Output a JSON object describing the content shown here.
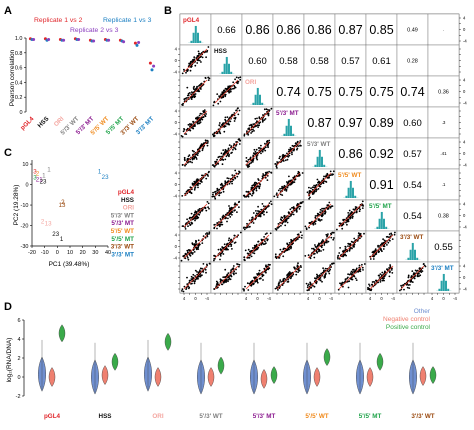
{
  "colors": {
    "pGL4": "#e0262b",
    "HSS": "#111111",
    "ORI": "#f4a6a0",
    "WT53": "#7f7f7f",
    "MT53": "#8b1a8f",
    "WT55": "#f08a1c",
    "MT55": "#1fa34a",
    "WT33": "#9a4a10",
    "MT33": "#1b7fc2",
    "rep12": "#e0262b",
    "rep13": "#1b7fc2",
    "rep23": "#8b3fbf",
    "hist": "#2aa3a8",
    "fit": "#e23a2a",
    "other": "#6f8fd0",
    "neg": "#ef8070",
    "pos": "#3aaa4a"
  },
  "panel_labels": {
    "a": "A",
    "b": "B",
    "c": "C",
    "d": "D"
  },
  "chart_data": [
    {
      "id": "A",
      "type": "scatter",
      "legend": [
        "Replicate 1 vs 2",
        "Replicate 1 vs 3",
        "Replicate 2 vs 3"
      ],
      "ylabel": "Pearson correlation",
      "ylim": [
        0,
        1.0
      ],
      "yticks": [
        "0",
        "0.2",
        "0.4",
        "0.6",
        "0.8",
        "1.0"
      ],
      "categories": [
        "pGL4",
        "HSS",
        "ORI",
        "5'/3' WT",
        "5'/3' MT",
        "5'/5' WT",
        "5'/5' MT",
        "3'/3' WT",
        "3'/3' MT"
      ],
      "series": [
        {
          "name": "Replicate 1 vs 2",
          "values": [
            0.99,
            0.99,
            0.98,
            0.99,
            0.97,
            0.98,
            0.97,
            0.93,
            0.66
          ]
        },
        {
          "name": "Replicate 1 vs 3",
          "values": [
            0.98,
            0.97,
            0.97,
            0.98,
            0.96,
            0.97,
            0.96,
            0.9,
            0.57
          ]
        },
        {
          "name": "Replicate 2 vs 3",
          "values": [
            0.98,
            0.98,
            0.97,
            0.98,
            0.96,
            0.97,
            0.95,
            0.94,
            0.62
          ]
        }
      ]
    },
    {
      "id": "B",
      "type": "table",
      "labels": [
        "pGL4",
        "HSS",
        "ORI",
        "5'/3' MT",
        "5'/3' WT",
        "5'/5' WT",
        "5'/5' MT",
        "3'/3' WT",
        "3'/3' MT"
      ],
      "upper": [
        [
          "0.66",
          "0.86",
          "0.86",
          "0.86",
          "0.87",
          "0.85",
          "0.49",
          "."
        ],
        [
          "0.60",
          "0.58",
          "0.58",
          "0.57",
          "0.61",
          "0.28"
        ],
        [
          "0.74",
          "0.75",
          "0.75",
          "0.75",
          "0.74",
          "0.36"
        ],
        [
          "0.87",
          "0.97",
          "0.89",
          "0.60",
          ".3"
        ],
        [
          "0.86",
          "0.92",
          "0.57",
          ".41"
        ],
        [
          "0.91",
          "0.54",
          ".1"
        ],
        [
          "0.54",
          "0.38"
        ],
        [
          "0.55"
        ]
      ],
      "right_ticks": [
        "4",
        "2",
        "0",
        "-2",
        "-4"
      ]
    },
    {
      "id": "C",
      "type": "scatter",
      "xlabel": "PC1 (39.48%)",
      "ylabel": "PC2 (19.28%)",
      "xlim": [
        -20,
        40
      ],
      "ylim": [
        -30,
        12
      ],
      "xticks": [
        "-20",
        "-10",
        "0",
        "10",
        "20",
        "30",
        "40"
      ],
      "yticks": [
        "10",
        "0",
        "-10",
        "-20",
        "-30"
      ],
      "legend": [
        "pGL4",
        "HSS",
        "ORI",
        "5'/3' WT",
        "5'/3' MT",
        "5'/5' WT",
        "5'/5' MT",
        "3'/3' WT",
        "3'/3' MT"
      ],
      "points": [
        {
          "text": "1",
          "x": 32,
          "y": 5.5,
          "c": "MT33"
        },
        {
          "text": "23",
          "x": 35,
          "y": 2.8,
          "c": "MT33"
        },
        {
          "text": "1",
          "x": -8,
          "y": 6.5,
          "c": "WT53"
        },
        {
          "text": "3",
          "x": -19,
          "y": 5.5,
          "c": "pGL4"
        },
        {
          "text": "2",
          "x": -17,
          "y": 4.5,
          "c": "WT55"
        },
        {
          "text": "1",
          "x": -12,
          "y": 3.5,
          "c": "WT53"
        },
        {
          "text": "3",
          "x": -19,
          "y": 2.5,
          "c": "MT55"
        },
        {
          "text": "21",
          "x": -17,
          "y": 1.5,
          "c": "MT53"
        },
        {
          "text": "23",
          "x": -14,
          "y": 0.5,
          "c": "HSS"
        },
        {
          "text": "2",
          "x": 3,
          "y": -9.5,
          "c": "WT33"
        },
        {
          "text": "13",
          "x": 1,
          "y": -11,
          "c": "WT33"
        },
        {
          "text": "2",
          "x": -13,
          "y": -19,
          "c": "ORI"
        },
        {
          "text": "13",
          "x": -10,
          "y": -20,
          "c": "ORI"
        },
        {
          "text": "23",
          "x": -4,
          "y": -25,
          "c": "HSS"
        },
        {
          "text": "1",
          "x": 2,
          "y": -27.5,
          "c": "HSS"
        }
      ]
    },
    {
      "id": "D",
      "type": "violin",
      "ylabel": "log₂(RNA/DNA)",
      "ylim": [
        -2,
        6
      ],
      "yticks": [
        "6",
        "4",
        "2",
        "0",
        "-2"
      ],
      "legend": [
        "Other",
        "Negative control",
        "Positive control"
      ],
      "groups": [
        "pGL4",
        "HSS",
        "ORI",
        "5'/3' WT",
        "5'/3' MT",
        "5'/5' WT",
        "5'/5' MT",
        "3'/3' WT"
      ],
      "medians": {
        "other": [
          0.3,
          0.0,
          0.3,
          0.0,
          0.0,
          0.0,
          0.0,
          0.0
        ],
        "neg": [
          0.0,
          0.2,
          0.0,
          0.0,
          -0.2,
          0.0,
          0.0,
          0.1
        ],
        "pos": [
          4.6,
          1.6,
          3.7,
          1.2,
          0.2,
          2.1,
          1.6,
          0.2
        ]
      }
    }
  ]
}
